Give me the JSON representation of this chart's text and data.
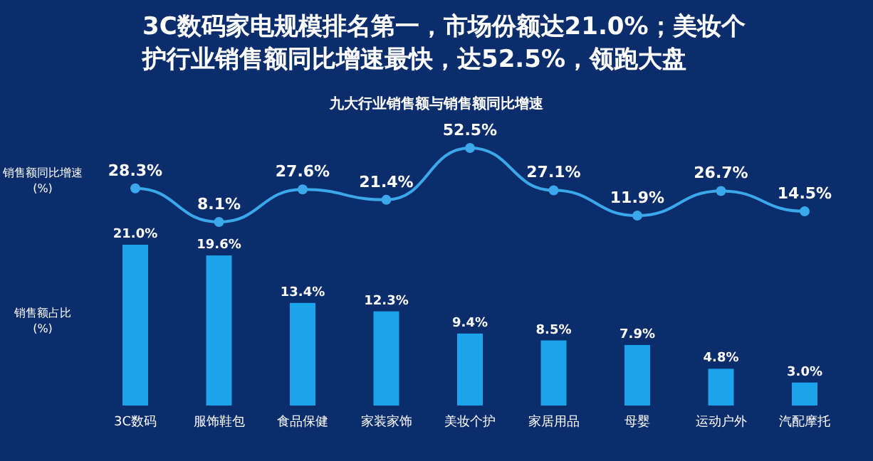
{
  "chart_data": [
    {
      "type": "line",
      "title": "3C数码家电规模排名第一，市场份额达21.0%；美妆个护行业销售额同比增速最快，达52.5%，领跑大盘",
      "subtitle": "九大行业销售额与销售额同比增速",
      "ylabel": "销售额同比增速(%)",
      "categories": [
        null,
        null,
        null,
        null,
        null,
        null,
        null,
        null,
        null
      ],
      "marker": "circle",
      "series": [
        {
          "color": "#3aa8ea",
          "values": [
            28.3,
            8.1,
            27.6,
            21.4,
            52.5,
            27.1,
            11.9,
            26.7,
            14.5
          ],
          "value_labels": [
            "28.3%",
            "8.1%",
            "27.6%",
            "21.4%",
            "52.5%",
            "27.1%",
            "11.9%",
            "26.7%",
            "14.5%"
          ]
        }
      ]
    },
    {
      "type": "bar",
      "ylabel": "销售额占比(%)",
      "categories": [
        "3C数码",
        "服饰鞋包",
        "食品保健",
        "家装家饰",
        "美妆个护",
        "家居用品",
        "母婴",
        "运动户外",
        "汽配摩托"
      ],
      "series": [
        {
          "color": "#1ba4ea",
          "values": [
            21.0,
            19.6,
            13.4,
            12.3,
            9.4,
            8.5,
            7.9,
            4.8,
            3.0
          ],
          "value_labels": [
            "21.0%",
            "19.6%",
            "13.4%",
            "12.3%",
            "9.4%",
            "8.5%",
            "7.9%",
            "4.8%",
            "3.0%"
          ]
        }
      ]
    }
  ]
}
